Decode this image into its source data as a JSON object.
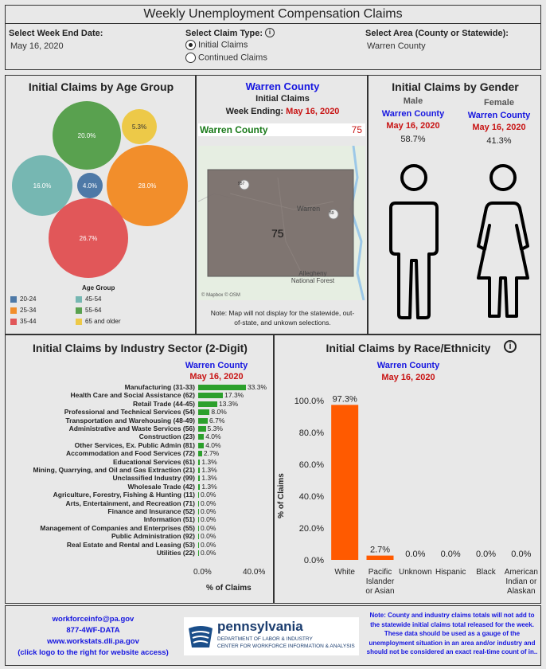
{
  "header": {
    "title": "Weekly Unemployment Compensation Claims"
  },
  "filters": {
    "week_label": "Select Week End Date:",
    "week_value": "May 16, 2020",
    "claim_type_label": "Select Claim Type:",
    "claim_type_options": [
      "Initial Claims",
      "Continued Claims"
    ],
    "claim_type_selected": "Initial Claims",
    "area_label": "Select Area (County or Statewide):",
    "area_value": "Warren County"
  },
  "age": {
    "title": "Initial Claims by Age Group",
    "legend_title": "Age Group",
    "groups": [
      {
        "label": "20-24",
        "value": "4.0%",
        "color": "#4e79a7"
      },
      {
        "label": "25-34",
        "value": "28.0%",
        "color": "#f28e2b"
      },
      {
        "label": "35-44",
        "value": "26.7%",
        "color": "#e15759"
      },
      {
        "label": "45-54",
        "value": "16.0%",
        "color": "#76b7b2"
      },
      {
        "label": "55-64",
        "value": "20.0%",
        "color": "#59a14f"
      },
      {
        "label": "65 and older",
        "value": "5.3%",
        "color": "#edc948"
      }
    ]
  },
  "map": {
    "county": "Warren County",
    "subtitle": "Initial Claims",
    "week_prefix": "Week Ending:",
    "week_date": "May 16, 2020",
    "header_county": "Warren County",
    "header_value": "75",
    "map_value": "75",
    "town": "Warren",
    "forest": "Allegheny National Forest",
    "road1": "957",
    "road2": "59",
    "credit": "© Mapbox © OSM",
    "note": "Note: Map will not display for the statewide, out-of-state, and unkown selections."
  },
  "gender": {
    "title": "Initial Claims by Gender",
    "male_label": "Male",
    "female_label": "Female",
    "county": "Warren County",
    "date": "May 16, 2020",
    "male_value": "58.7%",
    "female_value": "41.3%"
  },
  "industry": {
    "title": "Initial Claims by Industry Sector (2-Digit)",
    "county": "Warren County",
    "date": "May 16, 2020",
    "axis_ticks": [
      "0.0%",
      "40.0%"
    ],
    "axis_label": "% of Claims"
  },
  "race": {
    "title": "Initial Claims by Race/Ethnicity",
    "county": "Warren County",
    "date": "May 16, 2020",
    "ylabel": "% of Claims",
    "yticks": [
      "0.0%",
      "20.0%",
      "40.0%",
      "60.0%",
      "80.0%",
      "100.0%"
    ]
  },
  "chart_data": [
    {
      "type": "bar",
      "title": "Initial Claims by Industry Sector (2-Digit)",
      "orientation": "horizontal",
      "xlabel": "% of Claims",
      "xlim": [
        0,
        40
      ],
      "categories": [
        "Manufacturing (31-33)",
        "Health Care and Social Assistance (62)",
        "Retail Trade (44-45)",
        "Professional and Technical Services (54)",
        "Transportation and Warehousing (48-49)",
        "Administrative and Waste Services (56)",
        "Construction (23)",
        "Other Services, Ex. Public Admin (81)",
        "Accommodation and Food Services (72)",
        "Educational Services (61)",
        "Mining, Quarrying, and Oil and Gas Extraction (21)",
        "Unclassified Industry (99)",
        "Wholesale Trade (42)",
        "Agriculture, Forestry, Fishing & Hunting (11)",
        "Arts, Entertainment, and Recreation (71)",
        "Finance and Insurance (52)",
        "Information (51)",
        "Management of Companies and Enterprises (55)",
        "Public Administration (92)",
        "Real Estate and Rental and Leasing (53)",
        "Utilities (22)"
      ],
      "values": [
        33.3,
        17.3,
        13.3,
        8.0,
        6.7,
        5.3,
        4.0,
        4.0,
        2.7,
        1.3,
        1.3,
        1.3,
        1.3,
        0.0,
        0.0,
        0.0,
        0.0,
        0.0,
        0.0,
        0.0,
        0.0
      ],
      "labels": [
        "33.3%",
        "17.3%",
        "13.3%",
        "8.0%",
        "6.7%",
        "5.3%",
        "4.0%",
        "4.0%",
        "2.7%",
        "1.3%",
        "1.3%",
        "1.3%",
        "1.3%",
        "0.0%",
        "0.0%",
        "0.0%",
        "0.0%",
        "0.0%",
        "0.0%",
        "0.0%",
        "0.0%"
      ],
      "color": "#2ca02c"
    },
    {
      "type": "bar",
      "title": "Initial Claims by Race/Ethnicity",
      "ylabel": "% of Claims",
      "ylim": [
        0,
        100
      ],
      "categories": [
        "White",
        "Pacific Islander or Asian",
        "Unknown",
        "Hispanic",
        "Black",
        "American Indian or Alaskan"
      ],
      "category_lines": [
        [
          "White"
        ],
        [
          "Pacific",
          "Islander",
          "or Asian"
        ],
        [
          "Unknown"
        ],
        [
          "Hispanic"
        ],
        [
          "Black"
        ],
        [
          "American",
          "Indian or",
          "Alaskan"
        ]
      ],
      "values": [
        97.3,
        2.7,
        0.0,
        0.0,
        0.0,
        0.0
      ],
      "labels": [
        "97.3%",
        "2.7%",
        "0.0%",
        "0.0%",
        "0.0%",
        "0.0%"
      ],
      "color": "#ff5a00"
    }
  ],
  "footer": {
    "email": "workforceinfo@pa.gov",
    "phone": "877-4WF-DATA",
    "website": "www.workstats.dli.pa.gov",
    "click_note": "(click logo to the right for website access)",
    "logo_name": "pennsylvania",
    "logo_line1": "DEPARTMENT OF LABOR & INDUSTRY",
    "logo_line2": "CENTER FOR WORKFORCE INFORMATION & ANALYSIS",
    "note": "Note: County and industry claims totals will not add to the statewide initial claims total released for the week. These data should be used as a gauge of the unemployment situation in an area and/or industry and should not be considered an exact real-time count of in.."
  }
}
